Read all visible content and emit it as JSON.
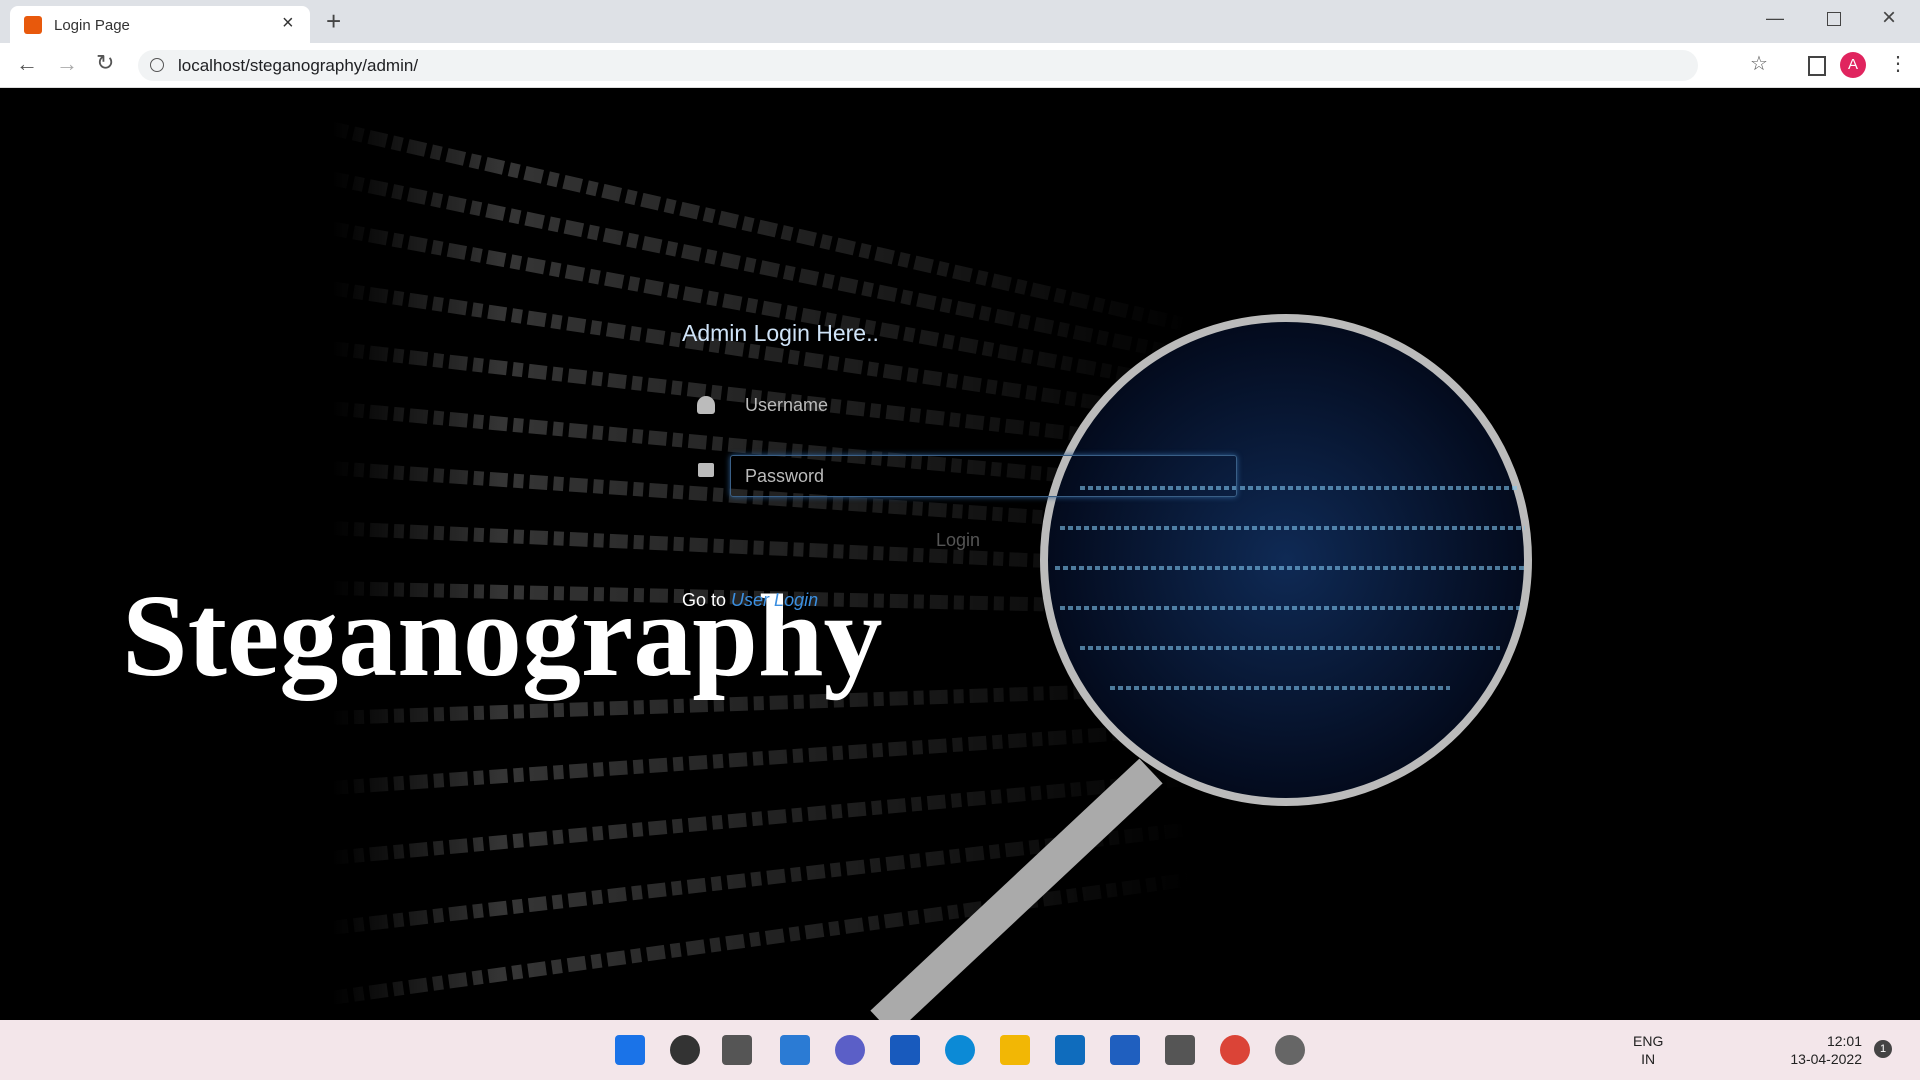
{
  "browser": {
    "tab_title": "Login Page",
    "url": "localhost/steganography/admin/",
    "profile_initial": "A"
  },
  "page": {
    "hero_text": "Steganography",
    "form": {
      "heading": "Admin Login Here..",
      "username_placeholder": "Username",
      "password_placeholder": "Password",
      "button": "Login",
      "footer_prefix": "Go to",
      "footer_link": "User Login"
    }
  },
  "taskbar": {
    "language": "ENG",
    "region": "IN",
    "time": "12:01",
    "date": "13-04-2022",
    "notification_count": "1"
  }
}
